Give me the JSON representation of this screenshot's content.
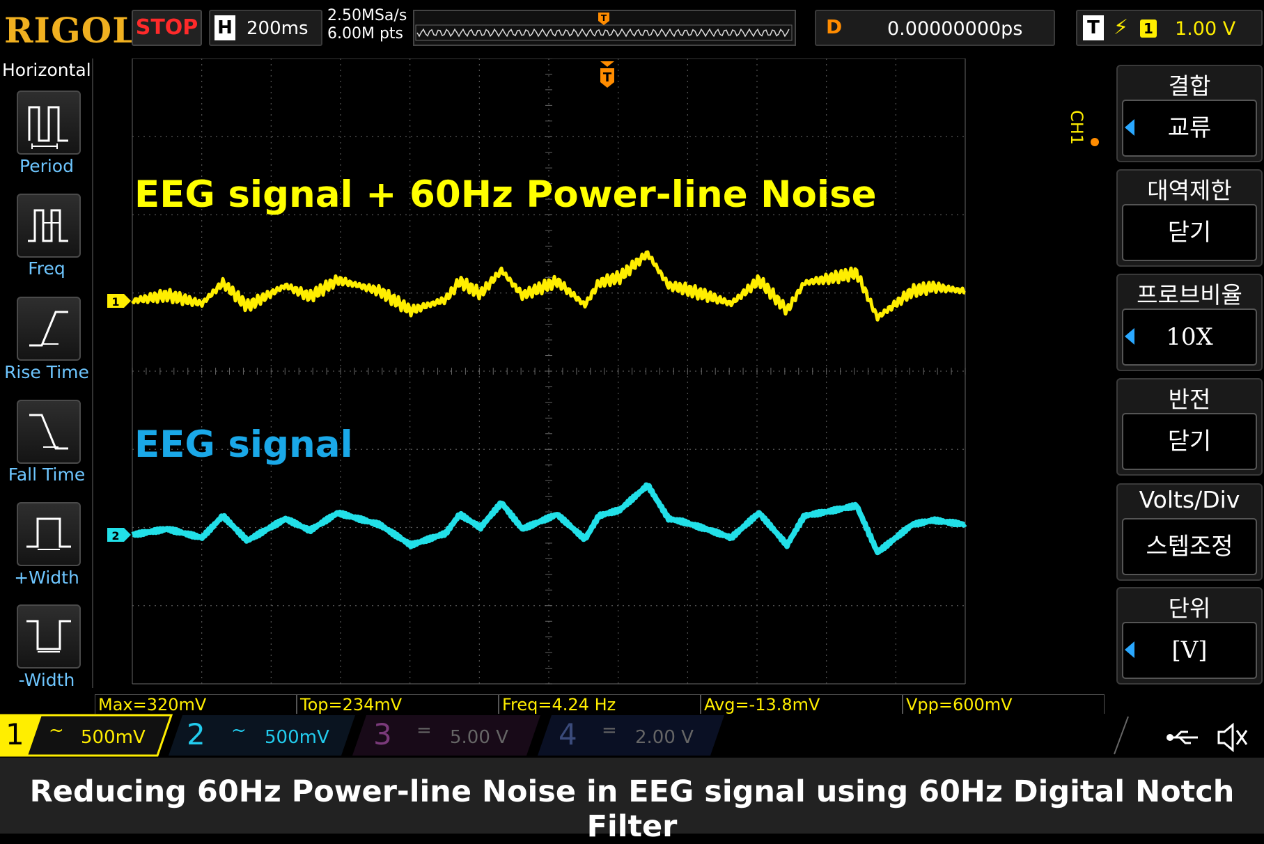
{
  "topbar": {
    "brand": "RIGOL",
    "run_state": "STOP",
    "horizontal_label": "H",
    "timebase": "200ms",
    "sample_rate": "2.50MSa/s",
    "memory_depth": "6.00M pts",
    "delay_label": "D",
    "delay_value": "0.00000000ps",
    "trigger_label": "T",
    "trigger_source": "1",
    "trigger_level": "1.00 V"
  },
  "left_menu": {
    "title": "Horizontal",
    "items": [
      {
        "label": "Period",
        "icon": "period-icon"
      },
      {
        "label": "Freq",
        "icon": "freq-icon"
      },
      {
        "label": "Rise Time",
        "icon": "rise-time-icon"
      },
      {
        "label": "Fall Time",
        "icon": "fall-time-icon"
      },
      {
        "label": "+Width",
        "icon": "plus-width-icon"
      },
      {
        "label": "-Width",
        "icon": "minus-width-icon"
      }
    ]
  },
  "screen": {
    "annotation_top": "EEG signal + 60Hz Power-line Noise",
    "annotation_bottom": "EEG signal",
    "trigger_marker": "T",
    "ch1_marker": "1",
    "ch2_marker": "2",
    "trace_colors": {
      "ch1": "#ffee00",
      "ch2": "#22e0e8"
    }
  },
  "right_menu": {
    "channel_tag": "CH1",
    "groups": [
      {
        "title": "결합",
        "value": "교류",
        "arrow": true
      },
      {
        "title": "대역제한",
        "value": "닫기",
        "arrow": false
      },
      {
        "title": "프로브비율",
        "value": "10X",
        "arrow": true
      },
      {
        "title": "반전",
        "value": "닫기",
        "arrow": false
      },
      {
        "title": "Volts/Div",
        "value": "스텝조정",
        "arrow": false
      },
      {
        "title": "단위",
        "value": "[V]",
        "arrow": true
      }
    ]
  },
  "measurements": [
    "Max=320mV",
    "Top=234mV",
    "Freq=4.24 Hz",
    "Avg=-13.8mV",
    "Vpp=600mV"
  ],
  "channels": [
    {
      "num": "1",
      "coupling": "~",
      "scale": "500mV",
      "color": "#ffee00"
    },
    {
      "num": "2",
      "coupling": "~",
      "scale": "500mV",
      "color": "#22ccee"
    },
    {
      "num": "3",
      "coupling": "=",
      "scale": "5.00 V",
      "color": "#cc44cc"
    },
    {
      "num": "4",
      "coupling": "=",
      "scale": "2.00 V",
      "color": "#2266cc"
    }
  ],
  "caption": "Reducing 60Hz Power-line Noise in EEG signal using 60Hz Digital Notch Filter"
}
